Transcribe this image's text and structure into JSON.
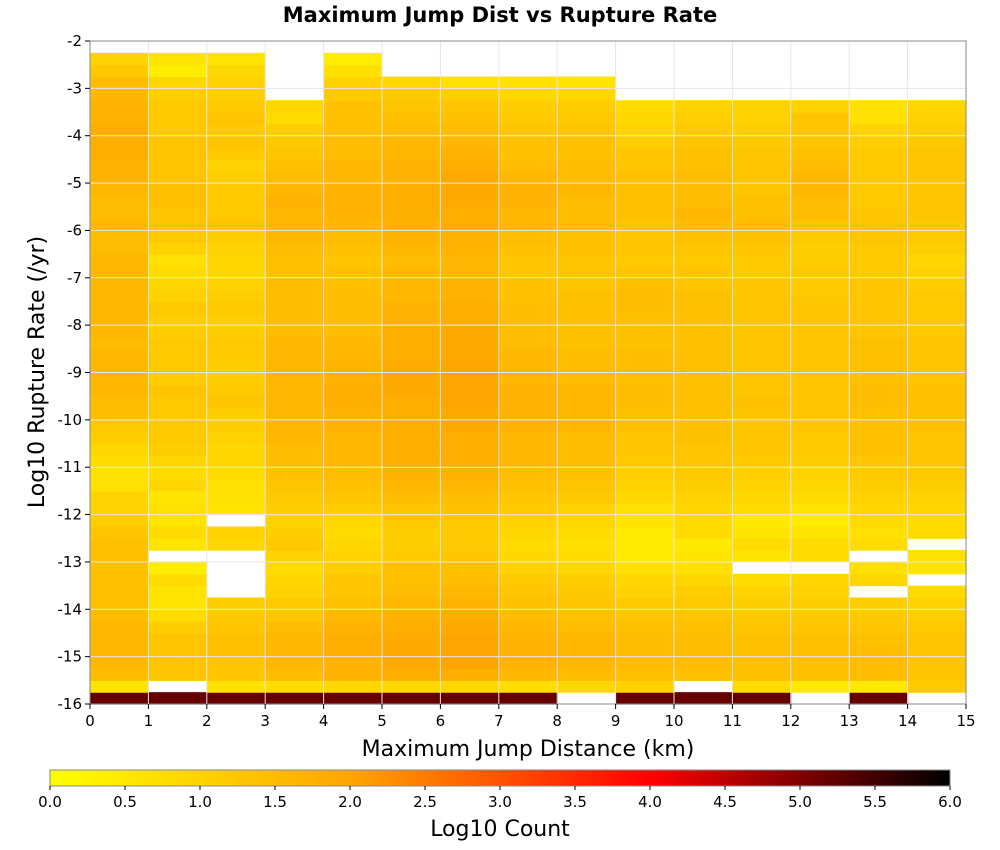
{
  "chart_data": {
    "type": "heatmap",
    "title": "Maximum Jump Dist vs Rupture Rate",
    "xlabel": "Maximum Jump Distance (km)",
    "ylabel": "Log10 Rupture Rate (/yr)",
    "xlim": [
      0,
      15
    ],
    "ylim": [
      -16,
      -2
    ],
    "x_ticks": [
      "0",
      "1",
      "2",
      "3",
      "4",
      "5",
      "6",
      "7",
      "8",
      "9",
      "10",
      "11",
      "12",
      "13",
      "14",
      "15"
    ],
    "y_ticks": [
      "-2",
      "-3",
      "-4",
      "-5",
      "-6",
      "-7",
      "-8",
      "-9",
      "-10",
      "-11",
      "-12",
      "-13",
      "-14",
      "-15",
      "-16"
    ],
    "x_bin_width": 1,
    "y_bin_height": 0.25,
    "y_bin_start": -16,
    "grid": true,
    "colorbar": {
      "label": "Log10 Count",
      "min": 0.0,
      "max": 6.0,
      "ticks": [
        "0.0",
        "0.5",
        "1.0",
        "1.5",
        "2.0",
        "2.5",
        "3.0",
        "3.5",
        "4.0",
        "4.5",
        "5.0",
        "5.5",
        "6.0"
      ],
      "colors": [
        "#ffff00",
        "#ffa500",
        "#ff0000",
        "#000000"
      ]
    },
    "columns": [
      [
        5.2,
        0.6,
        1.5,
        1.6,
        1.6,
        1.6,
        1.6,
        1.5,
        1.4,
        1.4,
        1.4,
        1.4,
        1.4,
        1.4,
        1.3,
        1.1,
        1.0,
        1.0,
        0.7,
        0.7,
        0.8,
        0.9,
        1.1,
        1.2,
        1.5,
        1.5,
        1.6,
        1.6,
        1.6,
        1.6,
        1.5,
        1.6,
        1.6,
        1.6,
        1.6,
        1.6,
        1.6,
        1.6,
        1.5,
        1.5,
        1.6,
        1.5,
        1.5,
        1.6,
        1.7,
        1.7,
        1.8,
        1.8,
        1.8,
        1.7,
        1.7,
        1.6,
        1.5,
        1.2,
        1.0
      ],
      [
        5.2,
        null,
        1.3,
        1.3,
        1.3,
        1.3,
        1.1,
        0.8,
        0.6,
        0.6,
        0.8,
        0.4,
        null,
        0.6,
        0.8,
        0.6,
        0.7,
        0.6,
        0.9,
        0.8,
        0.9,
        1.1,
        1.2,
        1.2,
        1.2,
        1.2,
        1.3,
        1.1,
        1.2,
        1.2,
        1.2,
        1.1,
        1.1,
        1.2,
        1.0,
        0.9,
        0.8,
        0.7,
        1.0,
        1.2,
        1.3,
        1.3,
        1.4,
        1.4,
        1.3,
        1.3,
        1.3,
        1.3,
        1.2,
        1.2,
        1.2,
        1.1,
        0.9,
        0.4,
        0.6
      ],
      [
        5.2,
        0.7,
        1.3,
        1.3,
        1.4,
        1.4,
        1.3,
        1.2,
        1.1,
        null,
        null,
        null,
        null,
        0.9,
        1.0,
        null,
        0.6,
        0.7,
        0.7,
        0.8,
        0.9,
        0.9,
        1.0,
        1.1,
        1.1,
        1.3,
        1.2,
        1.1,
        1.1,
        1.2,
        1.2,
        1.1,
        1.1,
        1.2,
        1.1,
        1.0,
        0.9,
        0.9,
        1.0,
        1.1,
        1.3,
        1.2,
        1.2,
        1.2,
        1.1,
        1.0,
        1.2,
        1.3,
        1.2,
        1.3,
        1.2,
        1.1,
        1.0,
        0.9,
        0.6
      ],
      [
        5.2,
        0.8,
        1.5,
        1.6,
        1.6,
        1.6,
        1.5,
        1.3,
        1.2,
        1.0,
        0.9,
        0.8,
        1.0,
        1.2,
        1.1,
        1.0,
        1.1,
        1.2,
        1.3,
        1.4,
        1.5,
        1.5,
        1.6,
        1.6,
        1.6,
        1.6,
        1.6,
        1.6,
        1.6,
        1.6,
        1.6,
        1.5,
        1.5,
        1.5,
        1.5,
        1.5,
        1.4,
        1.4,
        1.5,
        1.6,
        1.6,
        1.6,
        1.7,
        1.6,
        1.5,
        1.4,
        1.3,
        1.2,
        1.1,
        0.8,
        0.9
      ],
      [
        5.2,
        0.9,
        1.7,
        1.7,
        1.8,
        1.8,
        1.7,
        1.6,
        1.4,
        1.3,
        1.3,
        1.1,
        1.0,
        0.9,
        0.8,
        0.9,
        1.1,
        1.3,
        1.4,
        1.5,
        1.6,
        1.6,
        1.6,
        1.7,
        1.7,
        1.8,
        1.8,
        1.7,
        1.7,
        1.6,
        1.6,
        1.5,
        1.5,
        1.5,
        1.5,
        1.4,
        1.4,
        1.3,
        1.4,
        1.5,
        1.6,
        1.7,
        1.7,
        1.7,
        1.6,
        1.6,
        1.5,
        1.5,
        1.4,
        1.4,
        1.4,
        1.2,
        1.0,
        0.7,
        0.4
      ],
      [
        5.2,
        0.9,
        1.8,
        1.9,
        1.9,
        1.9,
        1.8,
        1.7,
        1.6,
        1.5,
        1.4,
        1.4,
        1.2,
        1.1,
        1.1,
        1.2,
        1.3,
        1.5,
        1.6,
        1.7,
        1.8,
        1.8,
        1.8,
        1.8,
        1.8,
        1.8,
        1.9,
        1.9,
        1.9,
        1.8,
        1.8,
        1.8,
        1.7,
        1.7,
        1.6,
        1.6,
        1.6,
        1.5,
        1.6,
        1.7,
        1.7,
        1.8,
        1.8,
        1.8,
        1.7,
        1.7,
        1.6,
        1.6,
        1.5,
        1.4,
        1.3,
        1.2,
        0.9
      ],
      [
        5.2,
        0.9,
        1.8,
        2.0,
        2.0,
        2.0,
        1.9,
        1.8,
        1.7,
        1.6,
        1.5,
        1.4,
        1.3,
        1.2,
        1.2,
        1.2,
        1.4,
        1.5,
        1.6,
        1.7,
        1.8,
        1.8,
        1.8,
        1.9,
        1.9,
        2.0,
        2.0,
        2.0,
        2.0,
        1.9,
        1.9,
        1.9,
        1.8,
        1.8,
        1.7,
        1.7,
        1.6,
        1.6,
        1.7,
        1.7,
        1.8,
        1.8,
        1.9,
        1.9,
        1.9,
        1.8,
        1.7,
        1.6,
        1.5,
        1.4,
        1.3,
        1.1,
        0.7
      ],
      [
        5.2,
        0.8,
        1.6,
        1.7,
        1.7,
        1.7,
        1.6,
        1.5,
        1.4,
        1.3,
        1.2,
        1.0,
        0.9,
        0.8,
        0.9,
        1.0,
        1.2,
        1.3,
        1.4,
        1.5,
        1.6,
        1.6,
        1.6,
        1.7,
        1.7,
        1.7,
        1.7,
        1.6,
        1.6,
        1.6,
        1.5,
        1.5,
        1.5,
        1.5,
        1.4,
        1.4,
        1.3,
        1.3,
        1.4,
        1.5,
        1.6,
        1.6,
        1.7,
        1.7,
        1.6,
        1.5,
        1.4,
        1.4,
        1.3,
        1.2,
        1.1,
        0.9,
        0.7
      ],
      [
        null,
        0.9,
        1.5,
        1.6,
        1.6,
        1.6,
        1.5,
        1.4,
        1.3,
        1.2,
        1.1,
        0.9,
        0.8,
        0.7,
        0.8,
        0.9,
        1.0,
        1.2,
        1.3,
        1.4,
        1.5,
        1.5,
        1.5,
        1.6,
        1.6,
        1.6,
        1.6,
        1.5,
        1.5,
        1.5,
        1.4,
        1.4,
        1.4,
        1.4,
        1.4,
        1.3,
        1.3,
        1.3,
        1.4,
        1.4,
        1.5,
        1.5,
        1.5,
        1.6,
        1.5,
        1.5,
        1.4,
        1.4,
        1.3,
        1.2,
        1.1,
        0.9,
        0.6
      ],
      [
        5.2,
        1.0,
        1.4,
        1.5,
        1.5,
        1.5,
        1.4,
        1.3,
        1.2,
        1.0,
        0.9,
        0.7,
        0.5,
        0.5,
        0.5,
        0.6,
        0.7,
        0.9,
        1.0,
        1.1,
        1.2,
        1.3,
        1.3,
        1.4,
        1.4,
        1.5,
        1.5,
        1.4,
        1.5,
        1.5,
        1.4,
        1.4,
        1.4,
        1.5,
        1.5,
        1.4,
        1.3,
        1.2,
        1.3,
        1.3,
        1.3,
        1.4,
        1.4,
        1.4,
        1.4,
        1.3,
        1.3,
        1.1,
        1.0,
        0.9,
        0.8
      ],
      [
        5.2,
        null,
        1.4,
        1.5,
        1.5,
        1.5,
        1.4,
        1.3,
        1.2,
        1.1,
        0.9,
        0.7,
        0.6,
        0.5,
        0.8,
        0.8,
        0.9,
        1.0,
        1.1,
        1.2,
        1.3,
        1.3,
        1.4,
        1.4,
        1.4,
        1.4,
        1.4,
        1.4,
        1.4,
        1.4,
        1.4,
        1.4,
        1.4,
        1.4,
        1.4,
        1.3,
        1.3,
        1.2,
        1.3,
        1.4,
        1.5,
        1.6,
        1.5,
        1.5,
        1.5,
        1.4,
        1.4,
        1.3,
        1.2,
        1.1,
        1.0
      ],
      [
        5.2,
        0.8,
        1.4,
        1.4,
        1.4,
        1.4,
        1.3,
        1.2,
        1.1,
        1.0,
        0.8,
        null,
        0.6,
        0.8,
        0.6,
        0.5,
        0.8,
        0.9,
        1.0,
        1.1,
        1.2,
        1.3,
        1.3,
        1.3,
        1.3,
        1.4,
        1.3,
        1.3,
        1.3,
        1.3,
        1.3,
        1.3,
        1.3,
        1.3,
        1.3,
        1.3,
        1.2,
        1.2,
        1.3,
        1.4,
        1.5,
        1.4,
        1.4,
        1.3,
        1.3,
        1.3,
        1.3,
        1.2,
        1.1,
        1.0,
        1.0
      ],
      [
        null,
        0.5,
        1.4,
        1.4,
        1.4,
        1.4,
        1.3,
        1.2,
        1.1,
        1.0,
        0.9,
        null,
        0.8,
        0.8,
        0.6,
        0.4,
        0.6,
        0.8,
        0.9,
        1.0,
        1.1,
        1.2,
        1.2,
        1.3,
        1.3,
        1.3,
        1.3,
        1.3,
        1.3,
        1.3,
        1.3,
        1.3,
        1.3,
        1.3,
        1.2,
        1.2,
        1.2,
        1.1,
        1.1,
        1.2,
        1.3,
        1.5,
        1.5,
        1.6,
        1.6,
        1.5,
        1.4,
        1.3,
        1.3,
        1.3,
        1.0
      ],
      [
        5.2,
        0.5,
        1.5,
        1.5,
        1.5,
        1.4,
        1.3,
        1.2,
        1.1,
        null,
        0.9,
        0.7,
        null,
        0.8,
        0.7,
        0.8,
        0.9,
        1.0,
        1.1,
        1.2,
        1.3,
        1.4,
        1.4,
        1.4,
        1.4,
        1.5,
        1.5,
        1.4,
        1.4,
        1.4,
        1.4,
        1.3,
        1.3,
        1.3,
        1.3,
        1.3,
        1.2,
        1.2,
        1.2,
        1.3,
        1.3,
        1.3,
        1.2,
        1.2,
        1.2,
        1.2,
        1.2,
        1.1,
        1.0,
        0.7,
        0.7
      ],
      [
        null,
        1.2,
        1.3,
        1.3,
        1.3,
        1.3,
        1.2,
        1.1,
        1.0,
        0.8,
        null,
        0.6,
        0.7,
        null,
        0.8,
        0.8,
        0.9,
        1.0,
        1.1,
        1.2,
        1.3,
        1.3,
        1.3,
        1.4,
        1.4,
        1.4,
        1.4,
        1.3,
        1.3,
        1.3,
        1.3,
        1.2,
        1.2,
        1.2,
        1.2,
        1.1,
        1.0,
        0.9,
        1.1,
        1.2,
        1.2,
        1.3,
        1.3,
        1.3,
        1.3,
        1.3,
        1.3,
        1.2,
        1.1,
        1.0,
        0.9
      ]
    ]
  }
}
